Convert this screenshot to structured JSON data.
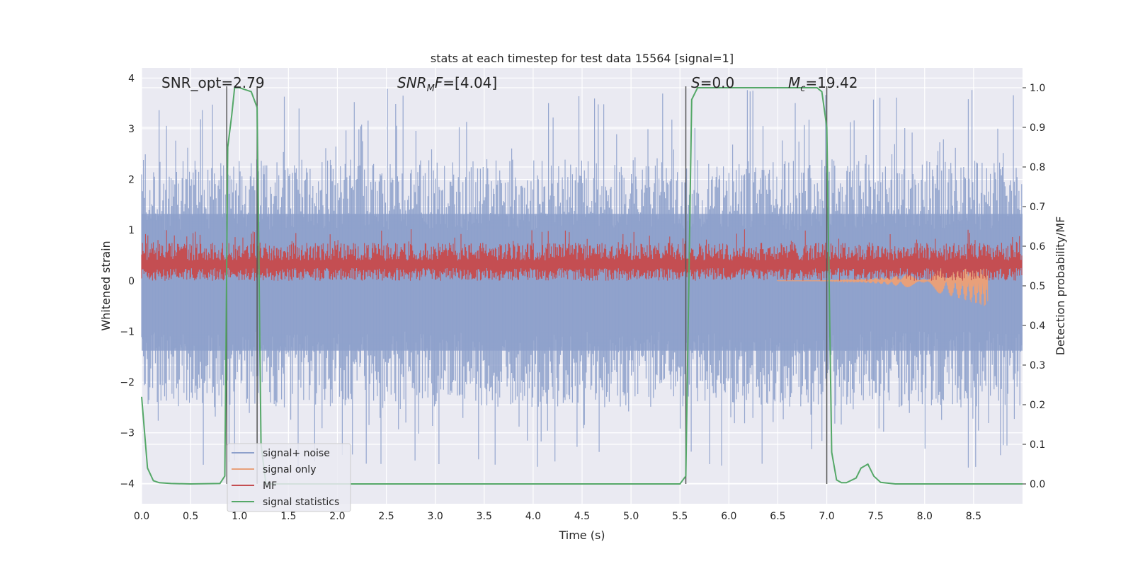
{
  "chart_data": {
    "type": "line",
    "title": "stats at each timestep for test data 15564 [signal=1]",
    "xlabel": "Time (s)",
    "ylabel": "Whitened strain",
    "ylabel_right": "Detection probability/MF",
    "xlim": [
      0.0,
      9.0
    ],
    "ylim": [
      -4.4,
      4.2
    ],
    "ylim_right": [
      -0.05,
      1.05
    ],
    "x_ticks": [
      "0.0",
      "0.5",
      "1.0",
      "1.5",
      "2.0",
      "2.5",
      "3.0",
      "3.5",
      "4.0",
      "4.5",
      "5.0",
      "5.5",
      "6.0",
      "6.5",
      "7.0",
      "7.5",
      "8.0",
      "8.5"
    ],
    "y_ticks": [
      "4",
      "3",
      "2",
      "1",
      "0",
      "−1",
      "−2",
      "−3",
      "−4"
    ],
    "y_ticks_right": [
      "1.0",
      "0.9",
      "0.8",
      "0.7",
      "0.6",
      "0.5",
      "0.4",
      "0.3",
      "0.2",
      "0.1",
      "0.0"
    ],
    "grid": true,
    "legend_position": "lower-left",
    "annotations": {
      "snr_opt": "SNR_opt=2.79",
      "snr_mf": "=[4.04]",
      "s": "=0.0",
      "mc": "=19.42"
    },
    "vlines_x": [
      0.87,
      1.18,
      5.56,
      7.0
    ],
    "series": [
      {
        "name": "signal+ noise",
        "color": "#8da0cb",
        "envelope_upper": 2.2,
        "envelope_lower": -2.3,
        "peak_max": 3.9,
        "peak_min": -3.9
      },
      {
        "name": "signal only",
        "color": "#e8a07a",
        "values_note_x": [
          6.5,
          8.2,
          8.65
        ],
        "values": [
          0.0,
          -0.05,
          -0.45
        ]
      },
      {
        "name": "MF",
        "color": "#c44e52",
        "center": 0.3,
        "amplitude": 0.35
      },
      {
        "name": "signal statistics",
        "color": "#55a868",
        "axis": "right",
        "x": [
          0.0,
          0.06,
          0.12,
          0.18,
          0.3,
          0.5,
          0.8,
          0.85,
          0.88,
          0.92,
          0.95,
          1.0,
          1.12,
          1.18,
          1.22,
          1.27,
          1.3,
          5.5,
          5.56,
          5.62,
          5.68,
          5.75,
          6.9,
          6.95,
          7.0,
          7.05,
          7.1,
          7.15,
          7.2,
          7.3,
          7.35,
          7.42,
          7.48,
          7.55,
          7.7,
          9.0
        ],
        "y": [
          0.22,
          0.04,
          0.008,
          0.003,
          0.001,
          0.0,
          0.001,
          0.02,
          0.85,
          0.93,
          1.0,
          1.0,
          0.99,
          0.95,
          0.1,
          0.0,
          0.0,
          0.0,
          0.02,
          0.97,
          1.0,
          1.0,
          1.0,
          0.99,
          0.9,
          0.08,
          0.01,
          0.003,
          0.003,
          0.015,
          0.04,
          0.05,
          0.02,
          0.004,
          0.0,
          0.0
        ]
      }
    ]
  }
}
